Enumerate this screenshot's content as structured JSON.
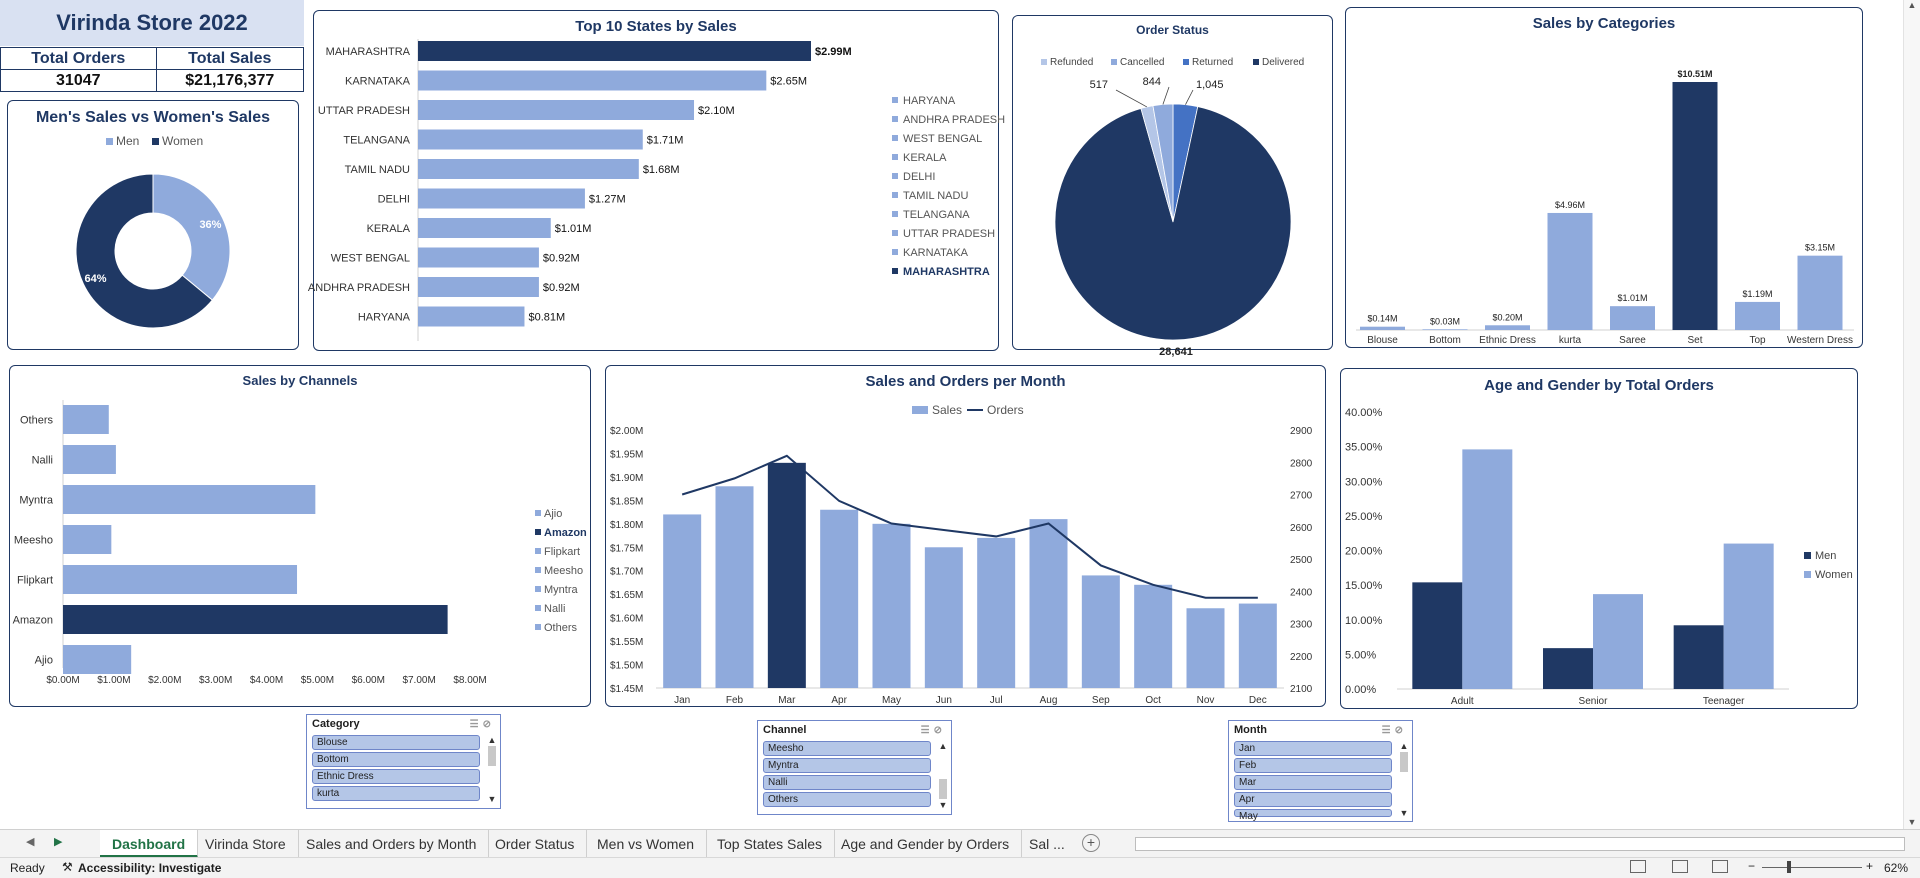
{
  "store": {
    "title": "Virinda Store 2022",
    "total_orders_label": "Total Orders",
    "total_sales_label": "Total Sales",
    "total_orders": "31047",
    "total_sales": "$21,176,377"
  },
  "colors": {
    "dark": "#1f3864",
    "light": "#8faadc",
    "accent": "#217346"
  },
  "gender": {
    "title": "Men's Sales vs Women's Sales",
    "chart_data": {
      "type": "pie",
      "categories": [
        "Men",
        "Women"
      ],
      "values": [
        36,
        64
      ],
      "labels": [
        "36%",
        "64%"
      ]
    }
  },
  "states": {
    "title": "Top 10 States by Sales",
    "chart_data": {
      "type": "bar",
      "categories": [
        "MAHARASHTRA",
        "KARNATAKA",
        "UTTAR PRADESH",
        "TELANGANA",
        "TAMIL NADU",
        "DELHI",
        "KERALA",
        "WEST BENGAL",
        "ANDHRA PRADESH",
        "HARYANA"
      ],
      "values": [
        2.99,
        2.65,
        2.1,
        1.71,
        1.68,
        1.27,
        1.01,
        0.92,
        0.92,
        0.81
      ],
      "labels": [
        "$2.99M",
        "$2.65M",
        "$2.10M",
        "$1.71M",
        "$1.68M",
        "$1.27M",
        "$1.01M",
        "$0.92M",
        "$0.92M",
        "$0.81M"
      ],
      "highlight": "MAHARASHTRA"
    },
    "legend": [
      "HARYANA",
      "ANDHRA PRADESH",
      "WEST BENGAL",
      "KERALA",
      "DELHI",
      "TAMIL NADU",
      "TELANGANA",
      "UTTAR PRADESH",
      "KARNATAKA",
      "MAHARASHTRA"
    ]
  },
  "order_status": {
    "title": "Order Status",
    "chart_data": {
      "type": "pie",
      "categories": [
        "Refunded",
        "Cancelled",
        "Returned",
        "Delivered"
      ],
      "values": [
        517,
        844,
        1045,
        28641
      ],
      "labels": [
        "517",
        "844",
        "1,045",
        "28,641"
      ]
    }
  },
  "categories": {
    "title": "Sales by Categories",
    "chart_data": {
      "type": "bar",
      "categories": [
        "Blouse",
        "Bottom",
        "Ethnic Dress",
        "kurta",
        "Saree",
        "Set",
        "Top",
        "Western Dress"
      ],
      "values": [
        0.14,
        0.03,
        0.2,
        4.96,
        1.01,
        10.51,
        1.19,
        3.15
      ],
      "labels": [
        "$0.14M",
        "$0.03M",
        "$0.20M",
        "$4.96M",
        "$1.01M",
        "$10.51M",
        "$1.19M",
        "$3.15M"
      ],
      "highlight": "Set"
    }
  },
  "channels": {
    "title": "Sales by Channels",
    "chart_data": {
      "type": "bar",
      "categories": [
        "Others",
        "Nalli",
        "Myntra",
        "Meesho",
        "Flipkart",
        "Amazon",
        "Ajio"
      ],
      "values": [
        0.9,
        1.04,
        4.96,
        0.95,
        4.6,
        7.56,
        1.34
      ],
      "highlight": "Amazon",
      "xticks": [
        "$0.00M",
        "$1.00M",
        "$2.00M",
        "$3.00M",
        "$4.00M",
        "$5.00M",
        "$6.00M",
        "$7.00M",
        "$8.00M"
      ],
      "xlim": [
        0,
        8
      ]
    },
    "legend": [
      "Ajio",
      "Amazon",
      "Flipkart",
      "Meesho",
      "Myntra",
      "Nalli",
      "Others"
    ]
  },
  "monthly": {
    "title": "Sales and Orders per Month",
    "legend_sales": "Sales",
    "legend_orders": "Orders",
    "chart_data": {
      "type": "bar",
      "categories": [
        "Jan",
        "Feb",
        "Mar",
        "Apr",
        "May",
        "Jun",
        "Jul",
        "Aug",
        "Sep",
        "Oct",
        "Nov",
        "Dec"
      ],
      "series": [
        {
          "name": "Sales",
          "values": [
            1.82,
            1.88,
            1.93,
            1.83,
            1.8,
            1.75,
            1.77,
            1.81,
            1.69,
            1.67,
            1.62,
            1.63
          ]
        },
        {
          "name": "Orders",
          "values": [
            2700,
            2750,
            2820,
            2680,
            2610,
            2590,
            2570,
            2610,
            2480,
            2420,
            2380,
            2380
          ]
        }
      ],
      "highlight": "Mar",
      "yticks_left": [
        "$2.00M",
        "$1.95M",
        "$1.90M",
        "$1.85M",
        "$1.80M",
        "$1.75M",
        "$1.70M",
        "$1.65M",
        "$1.60M",
        "$1.55M",
        "$1.50M",
        "$1.45M"
      ],
      "ylim_left": [
        1.45,
        2.0
      ],
      "yticks_right": [
        "2900",
        "2800",
        "2700",
        "2600",
        "2500",
        "2400",
        "2300",
        "2200",
        "2100"
      ],
      "ylim_right": [
        2100,
        2900
      ]
    }
  },
  "age_gender": {
    "title": "Age and Gender by Total Orders",
    "chart_data": {
      "type": "bar",
      "categories": [
        "Adult",
        "Senior",
        "Teenager"
      ],
      "series": [
        {
          "name": "Men",
          "values": [
            15.4,
            5.9,
            9.2
          ]
        },
        {
          "name": "Women",
          "values": [
            34.6,
            13.7,
            21.0
          ]
        }
      ],
      "yticks": [
        "40.00%",
        "35.00%",
        "30.00%",
        "25.00%",
        "20.00%",
        "15.00%",
        "10.00%",
        "5.00%",
        "0.00%"
      ],
      "ylim": [
        0,
        40
      ]
    }
  },
  "slicers": {
    "category": {
      "title": "Category",
      "items": [
        "Blouse",
        "Bottom",
        "Ethnic Dress",
        "kurta"
      ]
    },
    "channel": {
      "title": "Channel",
      "items": [
        "Meesho",
        "Myntra",
        "Nalli",
        "Others"
      ]
    },
    "month": {
      "title": "Month",
      "items": [
        "Jan",
        "Feb",
        "Mar",
        "Apr",
        "May"
      ]
    }
  },
  "tabs": [
    "Dashboard",
    "Virinda Store",
    "Sales and Orders by Month",
    "Order Status",
    "Men vs Women",
    "Top States Sales",
    "Age and Gender by Orders",
    "Sal ..."
  ],
  "status": {
    "ready": "Ready",
    "accessibility": "Accessibility: Investigate",
    "zoom": "62%"
  }
}
